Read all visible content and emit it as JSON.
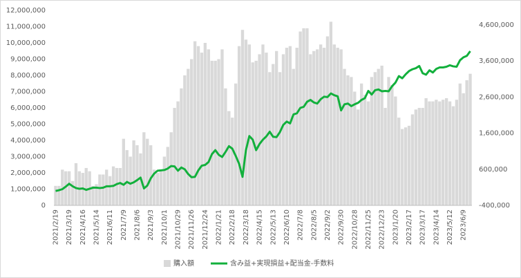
{
  "chart_data": {
    "type": "bar-line",
    "categories": [
      "2021/2/19",
      null,
      null,
      null,
      "2021/3/19",
      null,
      null,
      null,
      "2021/4/16",
      null,
      null,
      null,
      "2021/5/14",
      null,
      null,
      null,
      "2021/6/11",
      null,
      null,
      null,
      "2021/7/9",
      null,
      null,
      null,
      "2021/8/6",
      null,
      null,
      null,
      "2021/9/3",
      null,
      null,
      null,
      "2021/10/1",
      null,
      null,
      null,
      "2021/10/29",
      null,
      null,
      null,
      "2021/11/26",
      null,
      null,
      null,
      "2021/12/24",
      null,
      null,
      null,
      "2022/1/21",
      null,
      null,
      null,
      "2022/2/18",
      null,
      null,
      null,
      "2022/3/18",
      null,
      null,
      null,
      "2022/4/15",
      null,
      null,
      null,
      "2022/5/13",
      null,
      null,
      null,
      "2022/6/10",
      null,
      null,
      null,
      "2022/7/8",
      null,
      null,
      null,
      "2022/8/5",
      null,
      null,
      null,
      "2022/9/2",
      null,
      null,
      null,
      "2022/9/30",
      null,
      null,
      null,
      "2022/10/28",
      null,
      null,
      null,
      "2022/11/25",
      null,
      null,
      null,
      "2022/12/23",
      null,
      null,
      null,
      "2023/1/20",
      null,
      null,
      null,
      "2023/2/17",
      null,
      null,
      null,
      "2023/3/17",
      null,
      null,
      null,
      "2023/4/14",
      null,
      null,
      null,
      "2023/5/12",
      null,
      null,
      null,
      "2023/6/9",
      null,
      null
    ],
    "series": [
      {
        "name": "購入額",
        "color": "#d9d9d9",
        "axis": "y",
        "values": [
          1200000,
          1200000,
          2200000,
          2100000,
          2100000,
          1500000,
          2600000,
          2100000,
          2000000,
          2300000,
          2100000,
          1200000,
          1300000,
          1900000,
          1900000,
          2200000,
          1800000,
          2400000,
          2300000,
          2300000,
          4100000,
          3400000,
          3000000,
          4000000,
          3700000,
          3200000,
          4500000,
          4100000,
          3700000,
          2200000,
          2000000,
          2100000,
          3000000,
          3600000,
          4500000,
          6000000,
          6400000,
          7200000,
          8000000,
          8400000,
          9000000,
          10100000,
          9800000,
          9400000,
          10000000,
          9600000,
          8900000,
          8900000,
          9000000,
          9600000,
          7200000,
          5800000,
          5400000,
          7500000,
          9800000,
          10800000,
          10200000,
          9900000,
          8800000,
          8900000,
          9300000,
          9900000,
          9400000,
          8200000,
          8700000,
          9500000,
          8200000,
          9300000,
          9700000,
          9800000,
          8400000,
          9700000,
          10700000,
          10900000,
          10900000,
          9300000,
          9500000,
          9600000,
          9900000,
          9700000,
          10400000,
          11300000,
          9900000,
          9700000,
          9600000,
          8400000,
          8000000,
          7900000,
          7000000,
          5900000,
          7500000,
          6800000,
          6400000,
          7900000,
          8200000,
          8400000,
          8600000,
          6000000,
          7900000,
          7400000,
          6700000,
          5400000,
          4700000,
          4800000,
          4900000,
          5600000,
          5900000,
          6000000,
          6000000,
          6600000,
          6400000,
          6400000,
          6500000,
          6400000,
          6500000,
          6600000,
          6400000,
          6100000,
          6500000,
          7500000,
          6900000,
          7700000,
          8100000
        ]
      },
      {
        "name": "含み益+実現損益+配当金-手数料",
        "color": "#12b03c",
        "axis": "y2",
        "values": [
          0,
          20000,
          50000,
          120000,
          200000,
          130000,
          80000,
          60000,
          70000,
          30000,
          60000,
          90000,
          90000,
          80000,
          90000,
          130000,
          130000,
          140000,
          190000,
          220000,
          170000,
          250000,
          200000,
          240000,
          300000,
          370000,
          70000,
          150000,
          350000,
          480000,
          560000,
          570000,
          580000,
          620000,
          690000,
          680000,
          560000,
          650000,
          600000,
          470000,
          380000,
          390000,
          570000,
          700000,
          720000,
          800000,
          1020000,
          1130000,
          1000000,
          940000,
          1080000,
          1240000,
          1170000,
          970000,
          750000,
          390000,
          1130000,
          1520000,
          1420000,
          1130000,
          1300000,
          1420000,
          1510000,
          1640000,
          1500000,
          1490000,
          1630000,
          1830000,
          1920000,
          1870000,
          2120000,
          2150000,
          2300000,
          2330000,
          2470000,
          2520000,
          2450000,
          2420000,
          2540000,
          2610000,
          2600000,
          2700000,
          2650000,
          2620000,
          2230000,
          2400000,
          2420000,
          2350000,
          2400000,
          2440000,
          2520000,
          2570000,
          2770000,
          2670000,
          2790000,
          2810000,
          2760000,
          2770000,
          2760000,
          2900000,
          3000000,
          3180000,
          3120000,
          3230000,
          3320000,
          3370000,
          3400000,
          3460000,
          3260000,
          3220000,
          3340000,
          3280000,
          3380000,
          3420000,
          3420000,
          3440000,
          3480000,
          3450000,
          3440000,
          3620000,
          3700000,
          3740000,
          3870000
        ]
      }
    ],
    "ylim": [
      0,
      12000000
    ],
    "yticks": [
      0,
      {
        "value": 1000000,
        "label": "1,000,000"
      },
      {
        "value": 2000000,
        "label": "2,000,000"
      },
      {
        "value": 3000000,
        "label": "3,000,000"
      },
      {
        "value": 4000000,
        "label": "4,000,000"
      },
      {
        "value": 5000000,
        "label": "5,000,000"
      },
      {
        "value": 6000000,
        "label": "6,000,000"
      },
      {
        "value": 7000000,
        "label": "7,000,000"
      },
      {
        "value": 8000000,
        "label": "8,000,000"
      },
      {
        "value": 9000000,
        "label": "9,000,000"
      },
      {
        "value": 10000000,
        "label": "10,000,000"
      },
      {
        "value": 11000000,
        "label": "11,000,000"
      },
      {
        "value": 12000000,
        "label": "12,000,000"
      }
    ],
    "y2lim": [
      -400000,
      5000000
    ],
    "y2ticks": [
      {
        "value": -400000,
        "label": "-400,000"
      },
      {
        "value": 600000,
        "label": "600,000"
      },
      {
        "value": 1600000,
        "label": "1,600,000"
      },
      {
        "value": 2600000,
        "label": "2,600,000"
      },
      {
        "value": 3600000,
        "label": "3,600,000"
      },
      {
        "value": 4600000,
        "label": "4,600,000"
      }
    ],
    "grid": false,
    "legend": "bottom"
  }
}
